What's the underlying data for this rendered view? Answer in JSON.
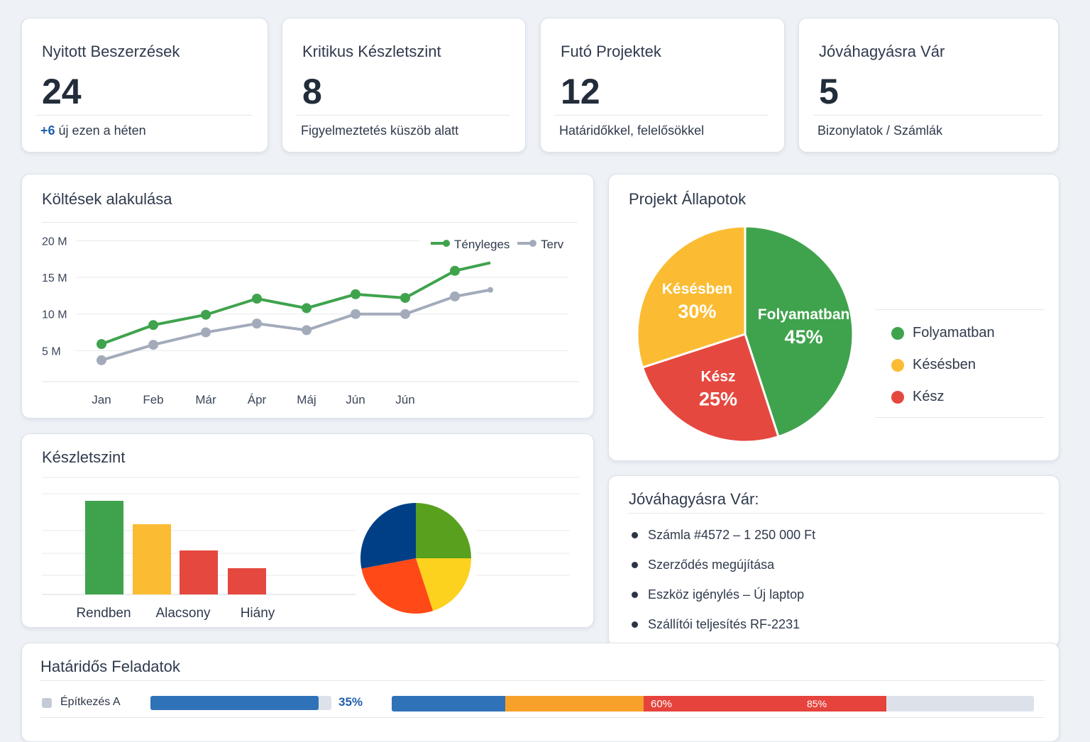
{
  "kpis": [
    {
      "title": "Nyitott Beszerzések",
      "value": "24",
      "delta": "+6",
      "sub": "új ezen a héten"
    },
    {
      "title": "Kritikus Készletszint",
      "value": "8",
      "sub": "Figyelmeztetés küszöb alatt"
    },
    {
      "title": "Futó Projektek",
      "value": "12",
      "sub": "Határidőkkel, felelősökkel"
    },
    {
      "title": "Jóváhagyásra Vár",
      "value": "5",
      "sub": "Bizonylatok / Számlák"
    }
  ],
  "costs": {
    "title": "Költések alakulása"
  },
  "projects": {
    "title": "Projekt Állapotok"
  },
  "inventory": {
    "title": "Készletszint"
  },
  "approvals": {
    "title": "Jóváhagyásra Vár:",
    "items": [
      "Számla #4572  –  1 250 000 Ft",
      "Szerződés megújítása",
      "Eszköz igénylés  –  Új laptop",
      "Szállítói teljesítés RF-2231"
    ]
  },
  "tasks": {
    "title": "Határidős Feladatok",
    "rows": [
      {
        "name": "Építkezés A",
        "progress": 35,
        "progress_label": "35%",
        "stage_labels": [
          "60%",
          "85%"
        ]
      }
    ]
  },
  "colors": {
    "green": "#3fa34d",
    "yellow": "#fbbc33",
    "red": "#e5483f",
    "gray": "#a3abbb",
    "blue": "#2f72b8"
  },
  "chart_data": [
    {
      "type": "line",
      "title": "Költések alakulása",
      "categories": [
        "Jan",
        "Feb",
        "Már",
        "Ápr",
        "Máj",
        "Jún",
        "Jún",
        "",
        ""
      ],
      "yticks": [
        "5 M",
        "10 M",
        "15 M",
        "20 M"
      ],
      "ylim": [
        0,
        21
      ],
      "grid": true,
      "legend": "top-right",
      "series": [
        {
          "name": "Tényleges",
          "color": "#3fa34d",
          "values": [
            5.9,
            8.5,
            9.9,
            12.1,
            10.8,
            12.7,
            12.2,
            15.9,
            17.0
          ]
        },
        {
          "name": "Terv",
          "color": "#a3abbb",
          "values": [
            3.7,
            5.8,
            7.5,
            8.7,
            7.8,
            10.0,
            10.0,
            12.4,
            13.3
          ]
        }
      ]
    },
    {
      "type": "pie",
      "title": "Projekt Állapotok",
      "slices": [
        {
          "label": "Folyamatban",
          "value": 45,
          "pct": "45%",
          "color": "#3fa34d"
        },
        {
          "label": "Kész",
          "value": 25,
          "pct": "25%",
          "color": "#e5483f"
        },
        {
          "label": "Késésben",
          "value": 30,
          "pct": "30%",
          "color": "#fbbc33"
        }
      ],
      "legend": "right"
    },
    {
      "type": "bar",
      "title": "Készletszint",
      "categories": [
        "Rendben",
        "Alacsony",
        "Hiány"
      ],
      "bars": [
        {
          "value": 132,
          "color": "#3fa34d"
        },
        {
          "value": 99,
          "color": "#fbbc33"
        },
        {
          "value": 62,
          "color": "#e5483f"
        },
        {
          "value": 37,
          "color": "#e5483f"
        }
      ]
    },
    {
      "type": "pie",
      "slices": [
        {
          "value": 25,
          "color": "#58a01e"
        },
        {
          "value": 20,
          "color": "#fdd21f"
        },
        {
          "value": 27,
          "color": "#ff4a17"
        },
        {
          "value": 28,
          "color": "#003f86"
        }
      ]
    }
  ]
}
